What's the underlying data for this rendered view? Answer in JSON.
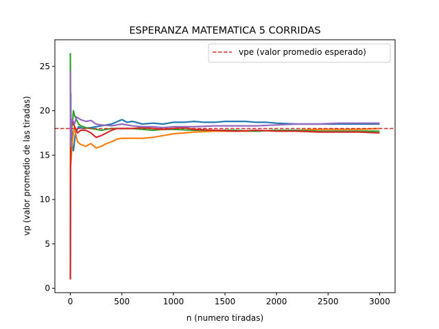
{
  "chart_data": {
    "type": "line",
    "title": "ESPERANZA MATEMATICA 5 CORRIDAS",
    "xlabel": "n (numero tiradas)",
    "ylabel": "vp (valor promedio de las tiradas)",
    "xlim": [
      -150,
      3150
    ],
    "ylim": [
      -0.5,
      28
    ],
    "xticks": [
      0,
      500,
      1000,
      1500,
      2000,
      2500,
      3000
    ],
    "yticks": [
      0,
      5,
      10,
      15,
      20,
      25
    ],
    "grid": false,
    "legend_position": "top-right",
    "reference_line": {
      "label": "vpe (valor promedio esperado)",
      "y": 18,
      "color": "#d62728",
      "style": "dashed"
    },
    "series": [
      {
        "color": "#1f77b4",
        "points": [
          [
            0,
            1
          ],
          [
            2,
            14
          ],
          [
            4,
            22
          ],
          [
            6,
            17
          ],
          [
            10,
            19
          ],
          [
            20,
            16
          ],
          [
            30,
            15.5
          ],
          [
            50,
            17.5
          ],
          [
            80,
            18.2
          ],
          [
            120,
            18.0
          ],
          [
            200,
            18.1
          ],
          [
            300,
            18.3
          ],
          [
            400,
            18.5
          ],
          [
            500,
            19.0
          ],
          [
            550,
            18.7
          ],
          [
            600,
            18.8
          ],
          [
            700,
            18.5
          ],
          [
            800,
            18.6
          ],
          [
            900,
            18.5
          ],
          [
            1000,
            18.7
          ],
          [
            1100,
            18.7
          ],
          [
            1200,
            18.8
          ],
          [
            1300,
            18.7
          ],
          [
            1400,
            18.7
          ],
          [
            1500,
            18.8
          ],
          [
            1600,
            18.8
          ],
          [
            1700,
            18.8
          ],
          [
            1800,
            18.7
          ],
          [
            1900,
            18.7
          ],
          [
            2000,
            18.6
          ],
          [
            2200,
            18.5
          ],
          [
            2400,
            18.5
          ],
          [
            2600,
            18.5
          ],
          [
            2800,
            18.5
          ],
          [
            3000,
            18.5
          ]
        ]
      },
      {
        "color": "#ff7f0e",
        "points": [
          [
            0,
            12
          ],
          [
            3,
            20
          ],
          [
            5,
            14
          ],
          [
            10,
            15
          ],
          [
            20,
            16.5
          ],
          [
            30,
            17.5
          ],
          [
            40,
            18.2
          ],
          [
            50,
            17.5
          ],
          [
            70,
            16.5
          ],
          [
            100,
            16.2
          ],
          [
            150,
            16.0
          ],
          [
            200,
            16.3
          ],
          [
            250,
            15.8
          ],
          [
            300,
            16.0
          ],
          [
            350,
            16.3
          ],
          [
            400,
            16.5
          ],
          [
            450,
            16.8
          ],
          [
            500,
            16.9
          ],
          [
            600,
            16.9
          ],
          [
            700,
            16.9
          ],
          [
            800,
            17.0
          ],
          [
            900,
            17.2
          ],
          [
            1000,
            17.4
          ],
          [
            1200,
            17.6
          ],
          [
            1400,
            17.7
          ],
          [
            1600,
            17.7
          ],
          [
            1800,
            17.7
          ],
          [
            2000,
            17.8
          ],
          [
            2200,
            17.8
          ],
          [
            2400,
            17.9
          ],
          [
            2600,
            17.9
          ],
          [
            2800,
            17.9
          ],
          [
            3000,
            18.0
          ]
        ]
      },
      {
        "color": "#2ca02c",
        "points": [
          [
            0,
            26.5
          ],
          [
            2,
            21
          ],
          [
            4,
            15
          ],
          [
            6,
            19
          ],
          [
            10,
            18
          ],
          [
            20,
            18.5
          ],
          [
            30,
            20
          ],
          [
            40,
            19.5
          ],
          [
            60,
            19.0
          ],
          [
            80,
            18.5
          ],
          [
            100,
            18.3
          ],
          [
            150,
            18.1
          ],
          [
            200,
            18.0
          ],
          [
            300,
            17.8
          ],
          [
            400,
            18.0
          ],
          [
            500,
            18.0
          ],
          [
            600,
            18.0
          ],
          [
            700,
            17.9
          ],
          [
            800,
            17.8
          ],
          [
            900,
            17.9
          ],
          [
            1000,
            17.9
          ],
          [
            1200,
            17.8
          ],
          [
            1400,
            17.8
          ],
          [
            1600,
            17.8
          ],
          [
            1800,
            17.7
          ],
          [
            2000,
            17.8
          ],
          [
            2200,
            17.8
          ],
          [
            2400,
            17.7
          ],
          [
            2600,
            17.7
          ],
          [
            2800,
            17.7
          ],
          [
            3000,
            17.7
          ]
        ]
      },
      {
        "color": "#d62728",
        "points": [
          [
            0,
            1
          ],
          [
            2,
            13
          ],
          [
            4,
            17
          ],
          [
            8,
            18.5
          ],
          [
            15,
            19
          ],
          [
            30,
            18.5
          ],
          [
            50,
            18.0
          ],
          [
            70,
            17.5
          ],
          [
            100,
            17.8
          ],
          [
            150,
            17.8
          ],
          [
            200,
            17.5
          ],
          [
            250,
            17.0
          ],
          [
            300,
            17.2
          ],
          [
            350,
            17.5
          ],
          [
            400,
            17.8
          ],
          [
            450,
            18.0
          ],
          [
            500,
            18.0
          ],
          [
            600,
            18.0
          ],
          [
            700,
            18.1
          ],
          [
            800,
            18.0
          ],
          [
            900,
            17.9
          ],
          [
            1000,
            18.0
          ],
          [
            1100,
            18.1
          ],
          [
            1200,
            17.9
          ],
          [
            1400,
            17.8
          ],
          [
            1600,
            17.7
          ],
          [
            1800,
            17.8
          ],
          [
            2000,
            17.7
          ],
          [
            2200,
            17.7
          ],
          [
            2400,
            17.6
          ],
          [
            2600,
            17.6
          ],
          [
            2800,
            17.6
          ],
          [
            3000,
            17.5
          ]
        ]
      },
      {
        "color": "#9467bd",
        "points": [
          [
            0,
            24.5
          ],
          [
            2,
            16
          ],
          [
            4,
            20
          ],
          [
            6,
            17
          ],
          [
            10,
            18.8
          ],
          [
            20,
            19
          ],
          [
            40,
            18.5
          ],
          [
            60,
            19.3
          ],
          [
            100,
            19.0
          ],
          [
            150,
            18.8
          ],
          [
            200,
            18.9
          ],
          [
            250,
            18.5
          ],
          [
            300,
            18.4
          ],
          [
            400,
            18.3
          ],
          [
            500,
            18.5
          ],
          [
            600,
            18.3
          ],
          [
            700,
            18.2
          ],
          [
            800,
            18.2
          ],
          [
            900,
            18.1
          ],
          [
            1000,
            18.2
          ],
          [
            1200,
            18.2
          ],
          [
            1400,
            18.3
          ],
          [
            1600,
            18.3
          ],
          [
            1800,
            18.3
          ],
          [
            2000,
            18.4
          ],
          [
            2200,
            18.5
          ],
          [
            2400,
            18.5
          ],
          [
            2600,
            18.6
          ],
          [
            2800,
            18.6
          ],
          [
            3000,
            18.6
          ]
        ]
      }
    ]
  }
}
